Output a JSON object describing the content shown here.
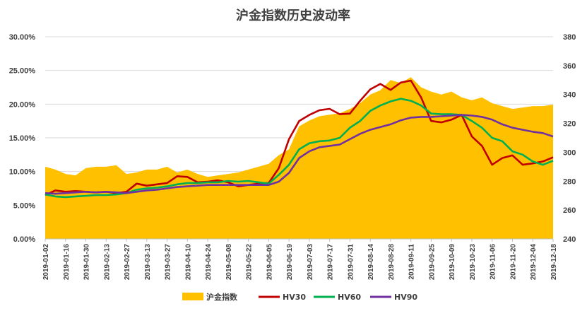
{
  "chart_data": {
    "type": "line",
    "title": "沪金指数历史波动率",
    "y_left": {
      "lim": [
        0,
        30
      ],
      "ticks": [
        0,
        5,
        10,
        15,
        20,
        25,
        30
      ],
      "tick_labels": [
        "0.00%",
        "5.00%",
        "10.00%",
        "15.00%",
        "20.00%",
        "25.00%",
        "30.00%"
      ]
    },
    "y_right": {
      "lim": [
        240,
        380
      ],
      "ticks": [
        240,
        260,
        280,
        300,
        320,
        340,
        360,
        380
      ],
      "tick_labels": [
        "240",
        "260",
        "280",
        "300",
        "320",
        "340",
        "360",
        "380"
      ]
    },
    "x_tick_labels": [
      "2019-01-02",
      "2019-01-16",
      "2019-01-30",
      "2019-02-13",
      "2019-02-27",
      "2019-03-13",
      "2019-03-27",
      "2019-04-10",
      "2019-04-24",
      "2019-05-08",
      "2019-05-22",
      "2019-06-05",
      "2019-06-19",
      "2019-07-03",
      "2019-07-17",
      "2019-07-31",
      "2019-08-14",
      "2019-08-28",
      "2019-09-11",
      "2019-09-25",
      "2019-10-09",
      "2019-10-23",
      "2019-11-06",
      "2019-11-20",
      "2019-12-04",
      "2019-12-18"
    ],
    "grid": true,
    "legend_position": "bottom",
    "x": [
      "2019-01-02",
      "2019-01-09",
      "2019-01-16",
      "2019-01-23",
      "2019-01-30",
      "2019-02-06",
      "2019-02-13",
      "2019-02-20",
      "2019-02-27",
      "2019-03-06",
      "2019-03-13",
      "2019-03-20",
      "2019-03-27",
      "2019-04-03",
      "2019-04-10",
      "2019-04-17",
      "2019-04-24",
      "2019-05-01",
      "2019-05-08",
      "2019-05-15",
      "2019-05-22",
      "2019-05-29",
      "2019-06-05",
      "2019-06-12",
      "2019-06-19",
      "2019-06-26",
      "2019-07-03",
      "2019-07-10",
      "2019-07-17",
      "2019-07-24",
      "2019-07-31",
      "2019-08-07",
      "2019-08-14",
      "2019-08-21",
      "2019-08-28",
      "2019-09-04",
      "2019-09-11",
      "2019-09-18",
      "2019-09-25",
      "2019-10-02",
      "2019-10-09",
      "2019-10-16",
      "2019-10-23",
      "2019-10-30",
      "2019-11-06",
      "2019-11-13",
      "2019-11-20",
      "2019-11-27",
      "2019-12-04",
      "2019-12-11",
      "2019-12-18"
    ],
    "series": [
      {
        "name": "沪金指数",
        "axis": "right",
        "kind": "area",
        "color": "#ffc000",
        "values": [
          290,
          288,
          285,
          284,
          289,
          290,
          290,
          291,
          285,
          286,
          288,
          288,
          290,
          286,
          288,
          285,
          283,
          284,
          285,
          286,
          288,
          290,
          292,
          298,
          302,
          318,
          322,
          325,
          326,
          327,
          330,
          334,
          340,
          343,
          350,
          348,
          352,
          345,
          342,
          340,
          342,
          338,
          336,
          338,
          334,
          332,
          330,
          331,
          332,
          332,
          333
        ]
      },
      {
        "name": "HV30",
        "axis": "left",
        "kind": "line",
        "color": "#c00000",
        "values": [
          6.5,
          7.2,
          7.0,
          7.1,
          7.0,
          6.9,
          7.0,
          6.8,
          7.0,
          8.2,
          7.9,
          8.1,
          8.3,
          9.3,
          9.2,
          8.4,
          8.5,
          8.7,
          8.4,
          7.8,
          8.0,
          8.2,
          8.3,
          10.5,
          14.8,
          17.5,
          18.4,
          19.1,
          19.3,
          18.5,
          18.6,
          20.5,
          22.2,
          23.0,
          22.1,
          23.2,
          23.5,
          21.0,
          17.5,
          17.3,
          17.7,
          18.4,
          15.2,
          13.8,
          11.0,
          12.0,
          12.4,
          11.0,
          11.2,
          11.5,
          12.1
        ]
      },
      {
        "name": "HV60",
        "axis": "left",
        "kind": "line",
        "color": "#00b050",
        "values": [
          6.6,
          6.3,
          6.2,
          6.3,
          6.4,
          6.5,
          6.5,
          6.6,
          6.8,
          7.3,
          7.5,
          7.6,
          7.8,
          8.1,
          8.3,
          8.3,
          8.4,
          8.4,
          8.6,
          8.5,
          8.6,
          8.4,
          8.2,
          9.5,
          11.0,
          13.3,
          14.2,
          14.5,
          14.6,
          15.0,
          16.5,
          17.5,
          19.0,
          19.8,
          20.4,
          20.8,
          20.5,
          19.8,
          18.6,
          18.5,
          18.5,
          18.4,
          17.5,
          16.5,
          15.0,
          14.5,
          13.0,
          12.5,
          11.5,
          11.0,
          11.6
        ]
      },
      {
        "name": "HV90",
        "axis": "left",
        "kind": "line",
        "color": "#7030a0",
        "values": [
          6.8,
          6.7,
          6.8,
          6.9,
          7.0,
          6.9,
          7.0,
          6.9,
          6.8,
          7.0,
          7.2,
          7.3,
          7.5,
          7.7,
          7.8,
          7.9,
          8.0,
          8.0,
          8.0,
          8.0,
          8.0,
          8.0,
          8.0,
          8.5,
          9.8,
          12.0,
          13.0,
          13.6,
          13.8,
          14.0,
          14.8,
          15.6,
          16.2,
          16.6,
          17.0,
          17.6,
          18.0,
          18.1,
          18.1,
          18.2,
          18.3,
          18.4,
          18.3,
          18.1,
          17.7,
          17.0,
          16.5,
          16.2,
          15.9,
          15.7,
          15.2
        ]
      }
    ]
  }
}
